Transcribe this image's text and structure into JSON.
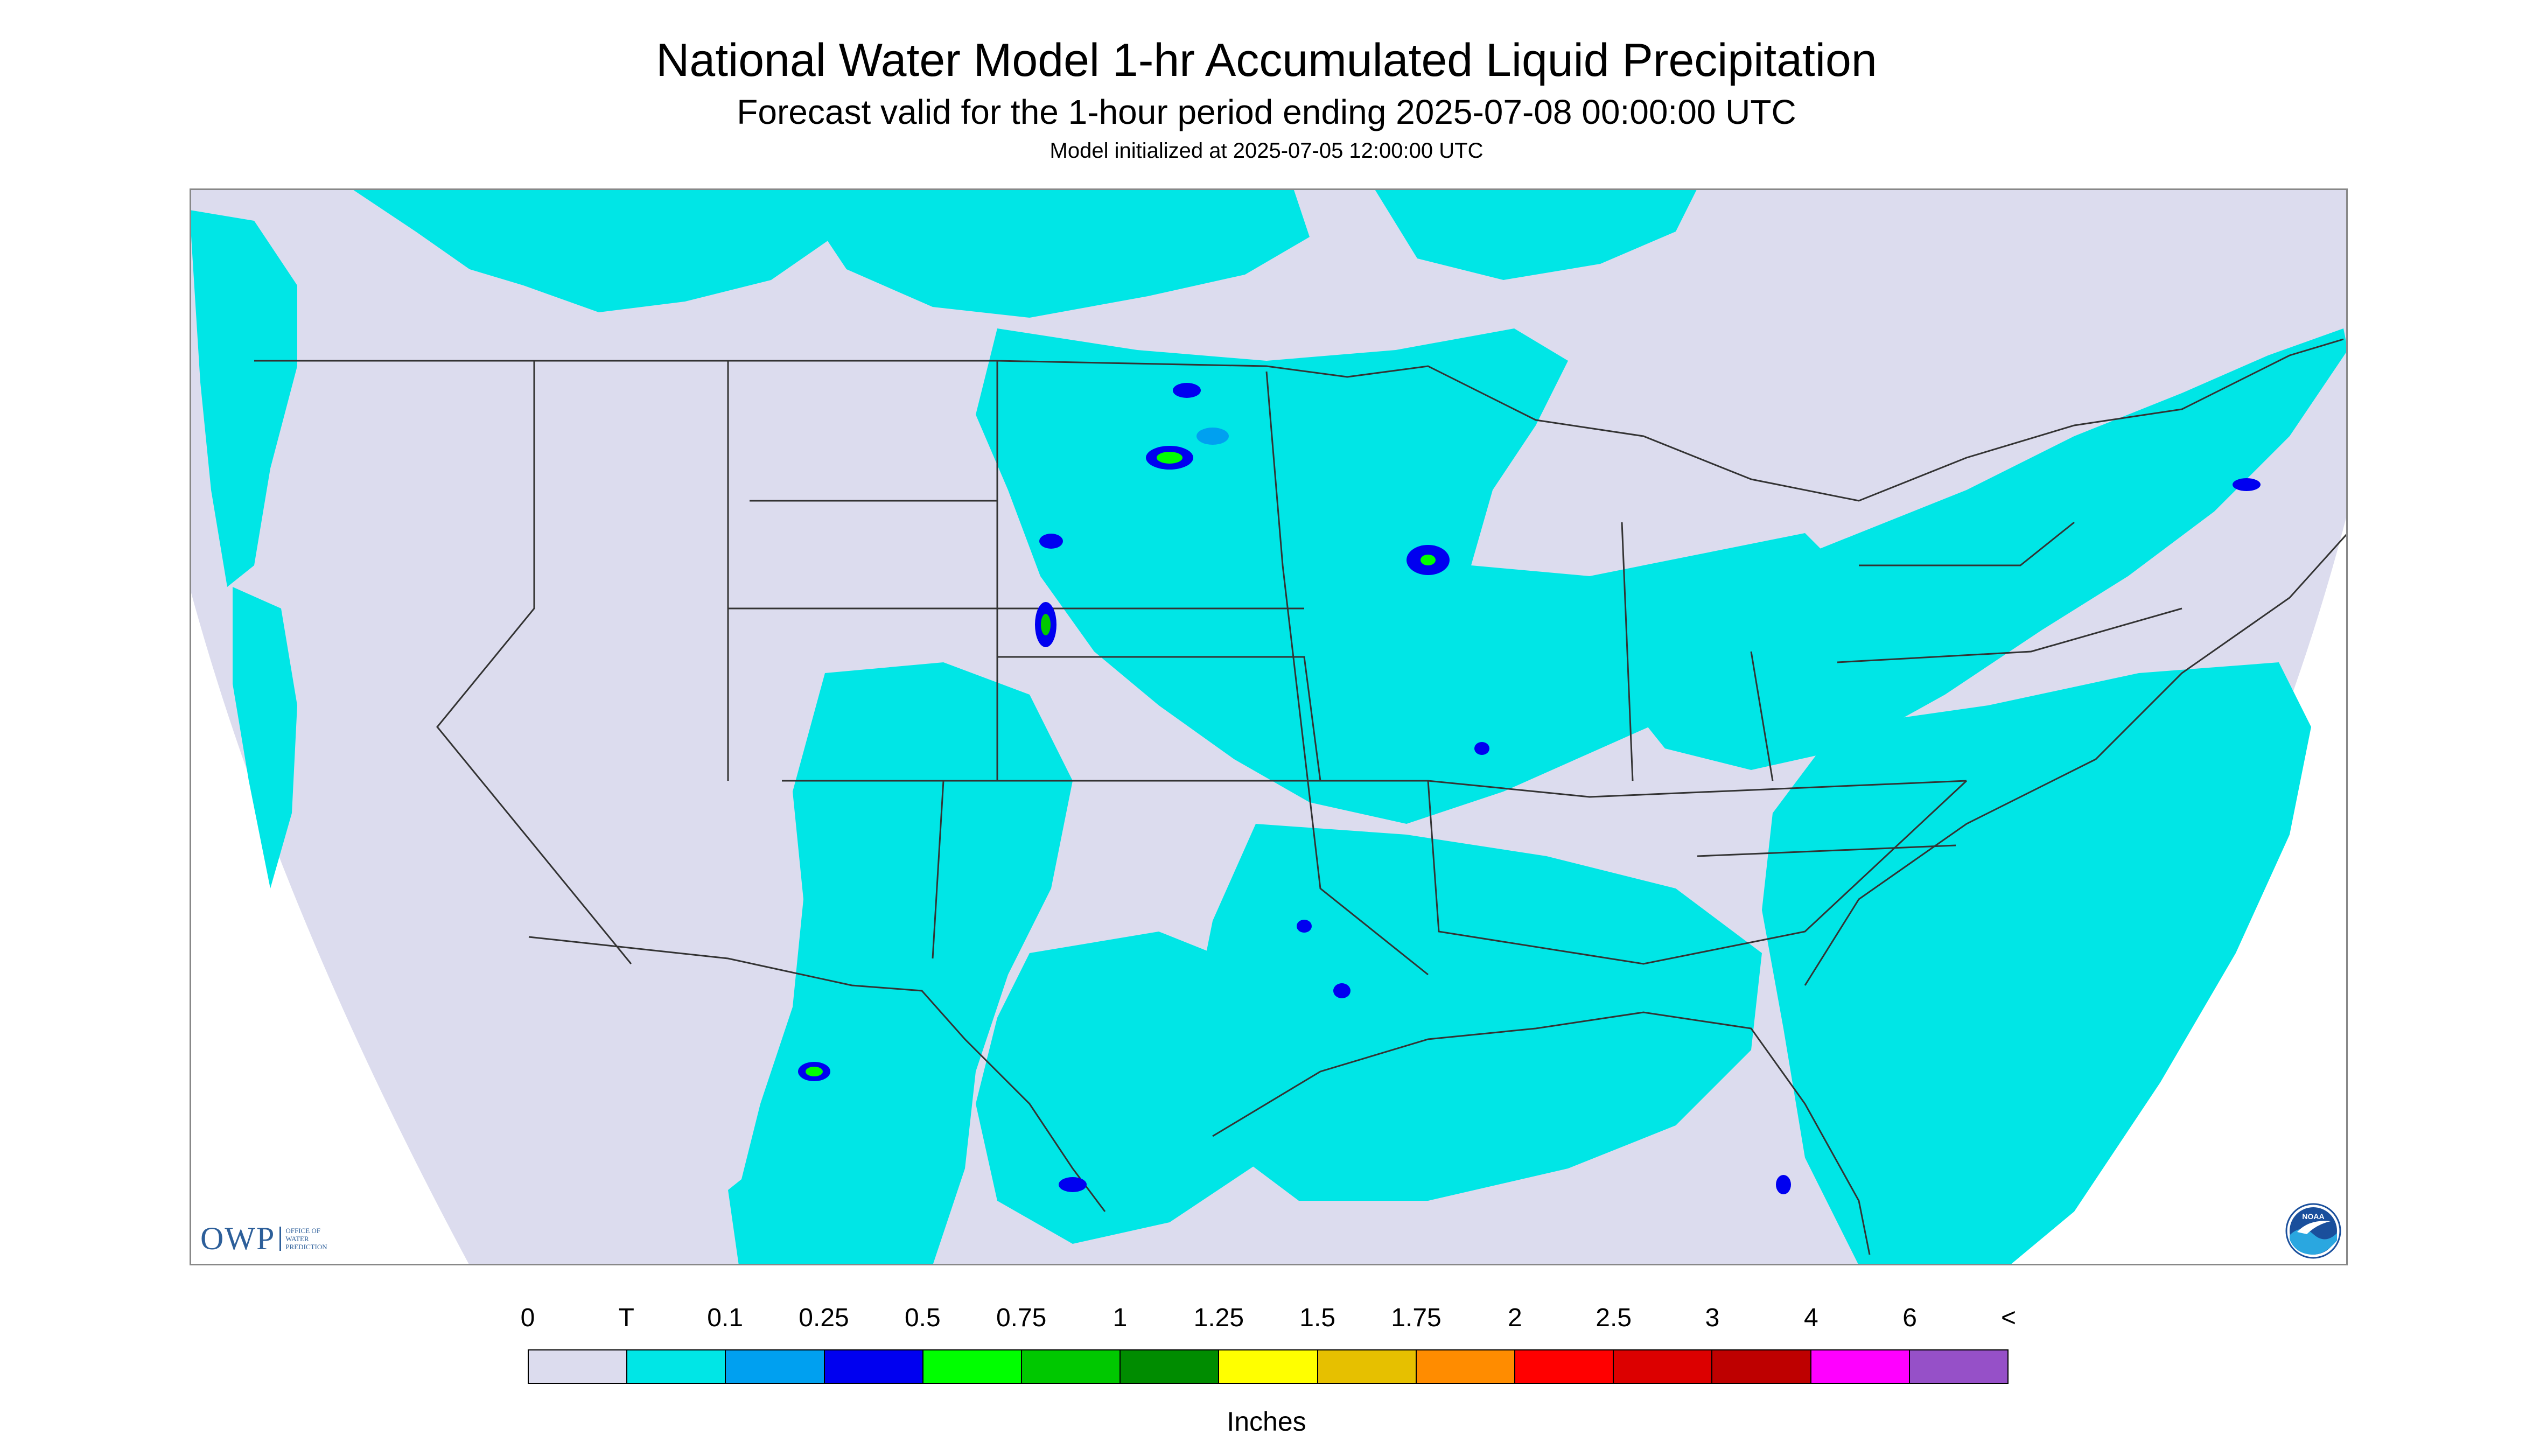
{
  "header": {
    "title": "National Water Model 1-hr Accumulated Liquid Precipitation",
    "subtitle": "Forecast valid for the 1-hour period ending 2025-07-08 00:00:00 UTC",
    "init": "Model initialized at 2025-07-05 12:00:00 UTC"
  },
  "logos": {
    "owp_mark": "OWP",
    "owp_text": "Office of Water Prediction",
    "noaa_text": "NOAA"
  },
  "legend": {
    "labels": [
      "0",
      "T",
      "0.1",
      "0.25",
      "0.5",
      "0.75",
      "1",
      "1.25",
      "1.5",
      "1.75",
      "2",
      "2.5",
      "3",
      "4",
      "6",
      "<"
    ],
    "colors": [
      "#dcdcee",
      "#00e6e6",
      "#00a0f0",
      "#0000f0",
      "#00ff00",
      "#00c800",
      "#008c00",
      "#ffff00",
      "#e6c000",
      "#ff8c00",
      "#ff0000",
      "#dc0000",
      "#be0000",
      "#ff00ff",
      "#9650c8"
    ],
    "units": "Inches"
  },
  "map_colors": {
    "background": "#dcdcee",
    "outside": "#ffffff",
    "light": "#00e6e6",
    "medium": "#00a0f0",
    "heavy": "#0000f0",
    "green": "#00ff00",
    "darkgreen": "#00c800",
    "border": "#333333"
  }
}
